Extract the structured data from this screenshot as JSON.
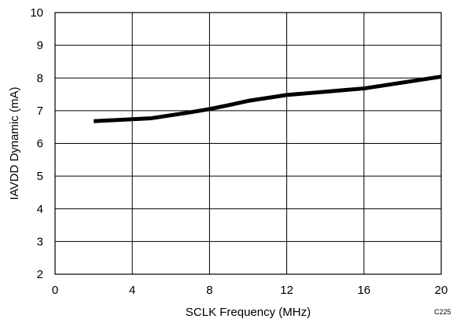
{
  "chart_data": {
    "type": "line",
    "xlabel": "SCLK Frequency (MHz)",
    "ylabel": "IAVDD Dynamic (mA)",
    "xlim": [
      0,
      20
    ],
    "ylim": [
      2,
      10
    ],
    "x_ticks": [
      0,
      4,
      8,
      12,
      16,
      20
    ],
    "y_ticks": [
      2,
      3,
      4,
      5,
      6,
      7,
      8,
      9,
      10
    ],
    "grid": true,
    "legend": "none",
    "series": [
      {
        "x": [
          2,
          3,
          4,
          5,
          6,
          7,
          8,
          9,
          10,
          11,
          12,
          13,
          14,
          15,
          16,
          17,
          18,
          19,
          20
        ],
        "values": [
          6.68,
          6.71,
          6.74,
          6.77,
          6.86,
          6.95,
          7.05,
          7.17,
          7.3,
          7.39,
          7.48,
          7.53,
          7.58,
          7.63,
          7.68,
          7.77,
          7.86,
          7.95,
          8.04
        ],
        "color": "#000000"
      }
    ],
    "figure_code": "C225"
  }
}
